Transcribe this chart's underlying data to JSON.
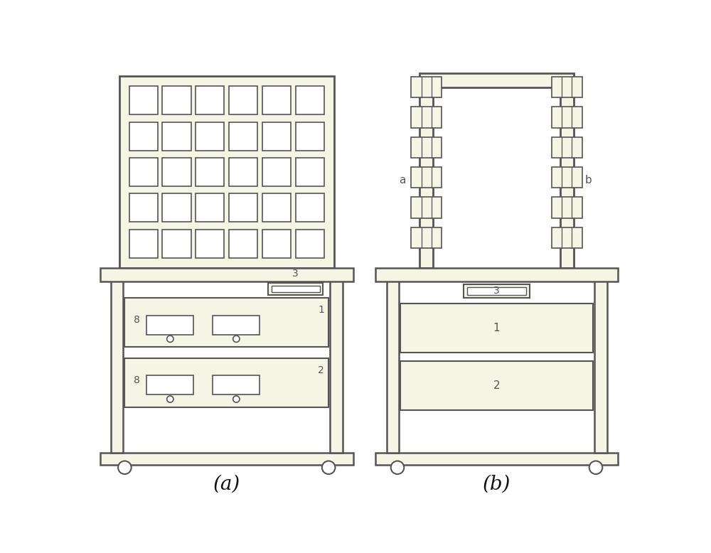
{
  "bg_color": "#ffffff",
  "panel_fill": "#f5f5e6",
  "line_color": "#555555",
  "title_a": "(a)",
  "title_b": "(b)",
  "label_a": "a",
  "label_b": "b",
  "grid_rows": 5,
  "grid_cols": 6
}
